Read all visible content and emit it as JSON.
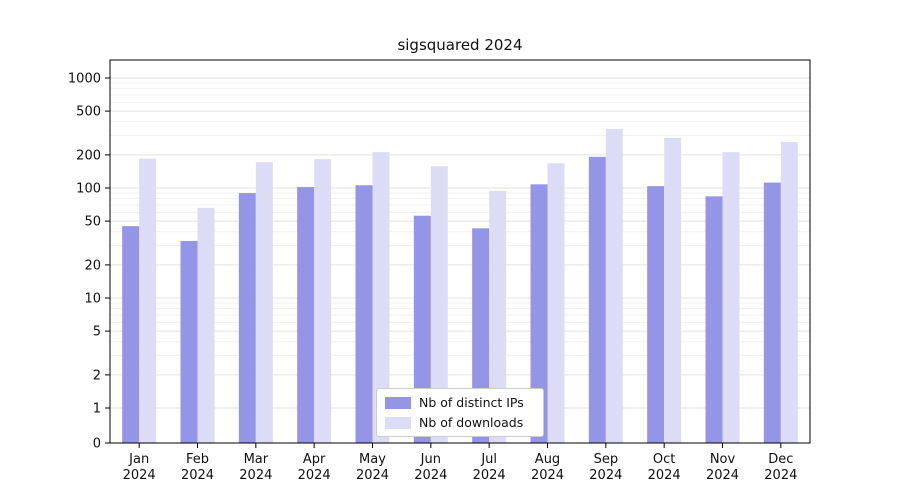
{
  "title": "sigsquared 2024",
  "colors": {
    "distinct_ips": "#9595e8",
    "downloads": "#dcdcf7",
    "grid_major": "#e2e2e2",
    "grid_minor": "#f1f1f1",
    "axis": "#000000",
    "text": "#111111"
  },
  "legend": {
    "items": [
      {
        "label": "Nb of distinct IPs",
        "color_key": "distinct_ips"
      },
      {
        "label": "Nb of downloads",
        "color_key": "downloads"
      }
    ]
  },
  "chart_data": {
    "type": "bar",
    "title": "sigsquared 2024",
    "categories": [
      "Jan",
      "Feb",
      "Mar",
      "Apr",
      "May",
      "Jun",
      "Jul",
      "Aug",
      "Sep",
      "Oct",
      "Nov",
      "Dec"
    ],
    "year_label": "2024",
    "series": [
      {
        "name": "Nb of distinct IPs",
        "color_key": "distinct_ips",
        "values": [
          45,
          33,
          90,
          102,
          106,
          56,
          43,
          108,
          192,
          104,
          84,
          112
        ]
      },
      {
        "name": "Nb of downloads",
        "color_key": "downloads",
        "values": [
          185,
          66,
          172,
          183,
          212,
          158,
          94,
          168,
          345,
          285,
          212,
          262
        ]
      }
    ],
    "yticks": [
      0,
      1,
      2,
      5,
      10,
      20,
      50,
      100,
      200,
      500,
      1000
    ],
    "yscale": "symlog",
    "ylim": [
      0,
      1450
    ],
    "xlabel": "",
    "ylabel": "",
    "grid": true,
    "legend_position": "lower center"
  }
}
